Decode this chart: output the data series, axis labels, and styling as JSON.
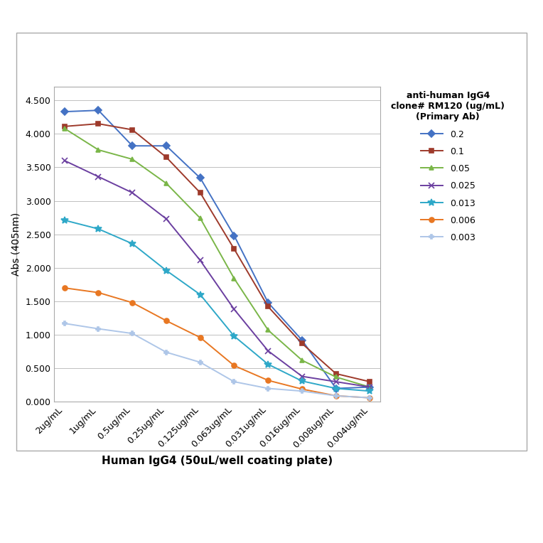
{
  "x_labels": [
    "2ug/mL",
    "1ug/mL",
    "0.5ug/mL",
    "0.25ug/mL",
    "0.125ug/mL",
    "0.063ug/mL",
    "0.031ug/mL",
    "0.016ug/mL",
    "0.008ug/mL",
    "0.004ug/mL"
  ],
  "series": [
    {
      "label": "0.2",
      "color": "#4472c4",
      "marker": "D",
      "markersize": 5,
      "values": [
        4.33,
        4.35,
        3.82,
        3.82,
        3.34,
        2.48,
        1.48,
        0.92,
        0.2,
        0.22
      ]
    },
    {
      "label": "0.1",
      "color": "#9e3a2b",
      "marker": "s",
      "markersize": 5,
      "values": [
        4.11,
        4.15,
        4.06,
        3.65,
        3.12,
        2.28,
        1.42,
        0.87,
        0.42,
        0.3
      ]
    },
    {
      "label": "0.05",
      "color": "#7ab648",
      "marker": "^",
      "markersize": 5,
      "values": [
        4.08,
        3.76,
        3.62,
        3.26,
        2.74,
        1.84,
        1.07,
        0.62,
        0.37,
        0.22
      ]
    },
    {
      "label": "0.025",
      "color": "#6b3fa0",
      "marker": "x",
      "markersize": 6,
      "values": [
        3.6,
        3.36,
        3.12,
        2.73,
        2.11,
        1.38,
        0.76,
        0.38,
        0.3,
        0.22
      ]
    },
    {
      "label": "0.013",
      "color": "#2ea8c8",
      "marker": "*",
      "markersize": 7,
      "values": [
        2.71,
        2.58,
        2.36,
        1.96,
        1.6,
        0.98,
        0.56,
        0.31,
        0.2,
        0.16
      ]
    },
    {
      "label": "0.006",
      "color": "#e87722",
      "marker": "o",
      "markersize": 5,
      "values": [
        1.7,
        1.63,
        1.48,
        1.21,
        0.96,
        0.54,
        0.32,
        0.19,
        0.09,
        0.06
      ]
    },
    {
      "label": "0.003",
      "color": "#aec6e8",
      "marker": "P",
      "markersize": 5,
      "values": [
        1.17,
        1.09,
        1.02,
        0.74,
        0.59,
        0.3,
        0.2,
        0.16,
        0.09,
        0.06
      ]
    }
  ],
  "xlabel": "Human IgG4 (50uL/well coating plate)",
  "ylabel": "Abs (405nm)",
  "ylim": [
    0.0,
    4.7
  ],
  "yticks": [
    0.0,
    0.5,
    1.0,
    1.5,
    2.0,
    2.5,
    3.0,
    3.5,
    4.0,
    4.5
  ],
  "legend_title": "anti-human IgG4\nclone# RM120 (ug/mL)\n(Primary Ab)",
  "outer_bg_color": "#ffffff",
  "plot_bg_color": "#ffffff",
  "grid_color": "#c0c0c0",
  "border_color": "#aaaaaa"
}
